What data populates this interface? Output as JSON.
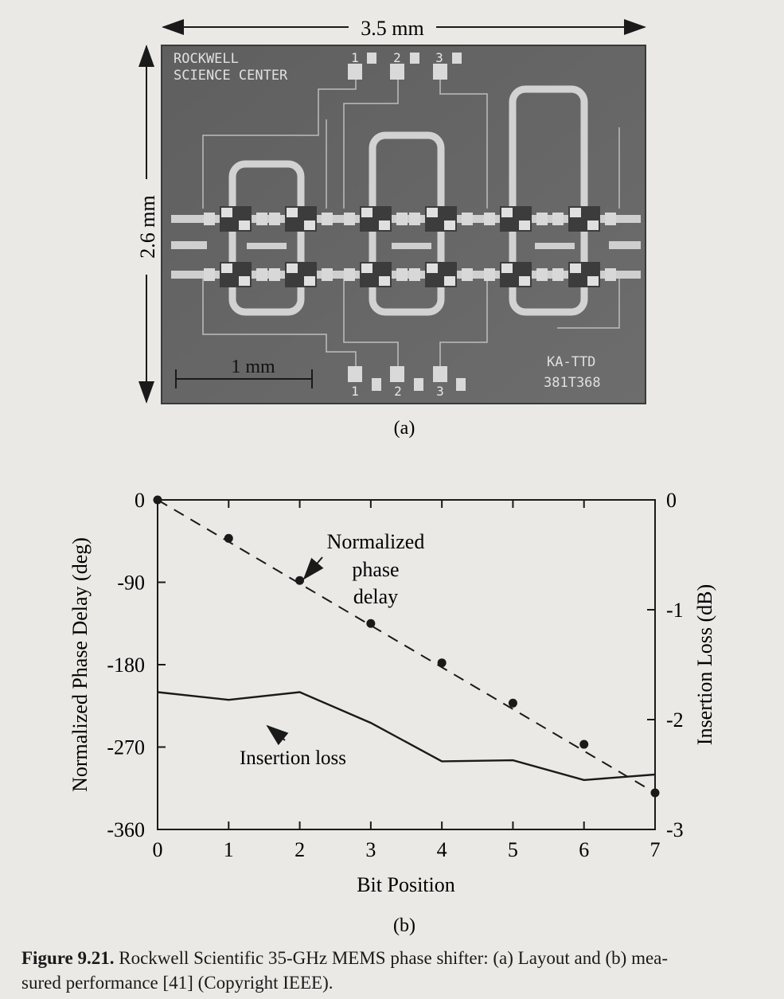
{
  "panel_a": {
    "width_label": "3.5 mm",
    "height_label": "2.6 mm",
    "scale_label": "1 mm",
    "chip_text_line1": "ROCKWELL",
    "chip_text_line2": "SCIENCE CENTER",
    "pad_labels_top": [
      "1",
      "2",
      "3"
    ],
    "pad_labels_bottom": [
      "1",
      "2",
      "3"
    ],
    "chip_code1": "KA-TTD",
    "chip_code2": "381T368",
    "sublabel": "(a)"
  },
  "panel_b": {
    "sublabel": "(b)",
    "annotation_phase": [
      "Normalized",
      "phase",
      "delay"
    ],
    "annotation_loss": "Insertion loss"
  },
  "chart_data": {
    "type": "line",
    "xlabel": "Bit Position",
    "ylabel": "Normalized Phase Delay (deg)",
    "y2label": "Insertion Loss (dB)",
    "xlim": [
      0,
      7
    ],
    "ylim": [
      -360,
      0
    ],
    "y2lim": [
      -3,
      0
    ],
    "x_ticks": [
      "0",
      "1",
      "2",
      "3",
      "4",
      "5",
      "6",
      "7"
    ],
    "y_ticks": [
      "0",
      "-90",
      "-180",
      "-270",
      "-360"
    ],
    "y2_ticks": [
      "0",
      "-1",
      "-2",
      "-3"
    ],
    "series": [
      {
        "name": "Normalized phase delay",
        "axis": "left",
        "style": "dashed-with-points",
        "x": [
          0,
          1,
          2,
          3,
          4,
          5,
          6,
          7
        ],
        "y": [
          0,
          -42,
          -88,
          -135,
          -178,
          -222,
          -267,
          -320
        ]
      },
      {
        "name": "Insertion loss",
        "axis": "right",
        "style": "solid",
        "x": [
          0,
          1,
          2,
          3,
          4,
          5,
          6,
          7
        ],
        "y": [
          -1.75,
          -1.82,
          -1.75,
          -2.03,
          -2.38,
          -2.37,
          -2.55,
          -2.5
        ]
      }
    ]
  },
  "caption": {
    "figure_number": "Figure 9.21.",
    "text_line1": " Rockwell Scientific 35-GHz MEMS phase shifter: (a) Layout and (b) mea-",
    "text_line2": "sured performance [41] (Copyright IEEE)."
  }
}
